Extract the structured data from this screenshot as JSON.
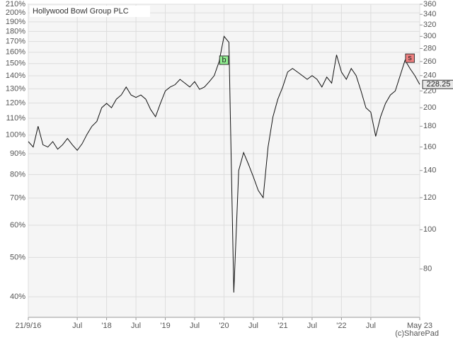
{
  "chart_data": {
    "type": "line",
    "title": "Hollywood Bowl Group PLC",
    "credit": "(c)SharePad",
    "log_scale": true,
    "grid": true,
    "x": [
      "2016-09",
      "2016-10",
      "2016-11",
      "2016-12",
      "2017-01",
      "2017-02",
      "2017-03",
      "2017-04",
      "2017-05",
      "2017-06",
      "2017-07",
      "2017-08",
      "2017-09",
      "2017-10",
      "2017-11",
      "2017-12",
      "2018-01",
      "2018-02",
      "2018-03",
      "2018-04",
      "2018-05",
      "2018-06",
      "2018-07",
      "2018-08",
      "2018-09",
      "2018-10",
      "2018-11",
      "2018-12",
      "2019-01",
      "2019-02",
      "2019-03",
      "2019-04",
      "2019-05",
      "2019-06",
      "2019-07",
      "2019-08",
      "2019-09",
      "2019-10",
      "2019-11",
      "2019-12",
      "2020-01",
      "2020-02",
      "2020-03",
      "2020-04",
      "2020-05",
      "2020-06",
      "2020-07",
      "2020-08",
      "2020-09",
      "2020-10",
      "2020-11",
      "2020-12",
      "2021-01",
      "2021-02",
      "2021-03",
      "2021-04",
      "2021-05",
      "2021-06",
      "2021-07",
      "2021-08",
      "2021-09",
      "2021-10",
      "2021-11",
      "2021-12",
      "2022-01",
      "2022-02",
      "2022-03",
      "2022-04",
      "2022-05",
      "2022-06",
      "2022-07",
      "2022-08",
      "2022-09",
      "2022-10",
      "2022-11",
      "2022-12",
      "2023-01",
      "2023-02",
      "2023-03",
      "2023-04",
      "2023-05"
    ],
    "series": [
      {
        "name": "Hollywood Bowl Group PLC",
        "color": "#111111",
        "axis": "y2",
        "values": [
          165,
          160,
          180,
          162,
          160,
          165,
          158,
          162,
          168,
          162,
          157,
          163,
          172,
          180,
          185,
          200,
          205,
          200,
          210,
          215,
          225,
          215,
          212,
          215,
          210,
          198,
          190,
          205,
          220,
          225,
          228,
          235,
          230,
          225,
          232,
          222,
          225,
          232,
          240,
          260,
          300,
          290,
          70,
          140,
          155,
          145,
          135,
          125,
          120,
          160,
          190,
          210,
          225,
          245,
          250,
          245,
          240,
          235,
          240,
          235,
          225,
          238,
          230,
          270,
          245,
          235,
          250,
          240,
          220,
          200,
          195,
          170,
          190,
          205,
          215,
          220,
          240,
          262,
          250,
          240,
          228.25
        ]
      }
    ],
    "xlim": [
      "2016-09",
      "2023-05"
    ],
    "xticks": [
      {
        "value": "2016-09",
        "label": "21/9/16"
      },
      {
        "value": "2017-07",
        "label": "Jul"
      },
      {
        "value": "2018-01",
        "label": "'18"
      },
      {
        "value": "2018-07",
        "label": "Jul"
      },
      {
        "value": "2019-01",
        "label": "'19"
      },
      {
        "value": "2019-07",
        "label": "Jul"
      },
      {
        "value": "2020-01",
        "label": "'20"
      },
      {
        "value": "2020-07",
        "label": "Jul"
      },
      {
        "value": "2021-01",
        "label": "'21"
      },
      {
        "value": "2021-07",
        "label": "Jul"
      },
      {
        "value": "2022-01",
        "label": "'22"
      },
      {
        "value": "2022-07",
        "label": "Jul"
      },
      {
        "value": "2023-05",
        "label": "May 23"
      }
    ],
    "ylim": [
      35.6,
      210
    ],
    "yticks": [
      {
        "value": 40,
        "label": "40%"
      },
      {
        "value": 50,
        "label": "50%"
      },
      {
        "value": 60,
        "label": "60%"
      },
      {
        "value": 70,
        "label": "70%"
      },
      {
        "value": 80,
        "label": "80%"
      },
      {
        "value": 90,
        "label": "90%"
      },
      {
        "value": 100,
        "label": "100%"
      },
      {
        "value": 110,
        "label": "110%"
      },
      {
        "value": 120,
        "label": "120%"
      },
      {
        "value": 130,
        "label": "130%"
      },
      {
        "value": 140,
        "label": "140%"
      },
      {
        "value": 150,
        "label": "150%"
      },
      {
        "value": 160,
        "label": "160%"
      },
      {
        "value": 170,
        "label": "170%"
      },
      {
        "value": 180,
        "label": "180%"
      },
      {
        "value": 190,
        "label": "190%"
      },
      {
        "value": 200,
        "label": "200%"
      },
      {
        "value": 210,
        "label": "210%"
      }
    ],
    "y2lim": [
      60.8,
      360
    ],
    "y2ticks": [
      80,
      100,
      120,
      140,
      160,
      180,
      200,
      220,
      240,
      260,
      280,
      300,
      320,
      340,
      360
    ],
    "annotations": [
      {
        "text": "b",
        "x": "2020-01",
        "y": 262,
        "color": "#90ee90"
      },
      {
        "text": "s",
        "x": "2023-03",
        "y": 265,
        "color": "#f08080"
      },
      {
        "text": "228.25",
        "x": "2023-05",
        "y": 228.25,
        "color": "#e8e8e8"
      }
    ]
  }
}
